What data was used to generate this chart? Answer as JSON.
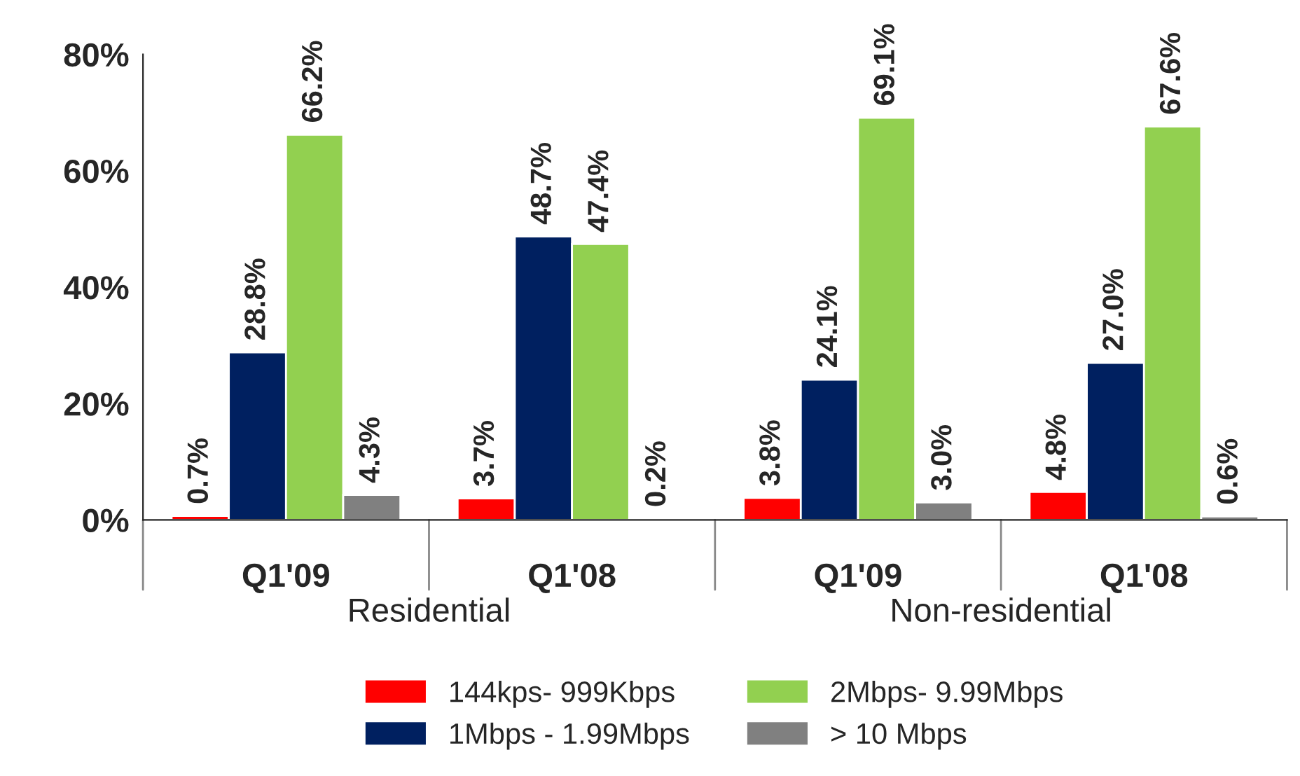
{
  "chart_data": {
    "type": "bar",
    "categories": [
      "Q1'09",
      "Q1'08",
      "Q1'09",
      "Q1'08"
    ],
    "annotations": [
      "Residential",
      "Non-residential"
    ],
    "series": [
      {
        "name": "144kps- 999Kbps",
        "color": "#ff0000",
        "values": [
          0.7,
          3.7,
          3.8,
          4.8
        ],
        "value_labels": [
          "0.7%",
          "3.7%",
          "3.8%",
          "4.8%"
        ]
      },
      {
        "name": "1Mbps - 1.99Mbps",
        "color": "#002060",
        "values": [
          28.8,
          48.7,
          24.1,
          27.0
        ],
        "value_labels": [
          "28.8%",
          "48.7%",
          "24.1%",
          "27.0%"
        ]
      },
      {
        "name": "2Mbps- 9.99Mbps",
        "color": "#92d050",
        "values": [
          66.2,
          47.4,
          69.1,
          67.6
        ],
        "value_labels": [
          "66.2%",
          "47.4%",
          "69.1%",
          "67.6%"
        ]
      },
      {
        "name": "> 10 Mbps",
        "color": "#808080",
        "values": [
          4.3,
          0.2,
          3.0,
          0.6
        ],
        "value_labels": [
          "4.3%",
          "0.2%",
          "3.0%",
          "0.6%"
        ]
      }
    ],
    "ylim": [
      0,
      80
    ],
    "yticks": [
      {
        "value": 0,
        "label": "0%"
      },
      {
        "value": 20,
        "label": "20%"
      },
      {
        "value": 40,
        "label": "40%"
      },
      {
        "value": 60,
        "label": "60%"
      },
      {
        "value": 80,
        "label": "80%"
      }
    ],
    "grid": false,
    "legend": "bottom"
  }
}
